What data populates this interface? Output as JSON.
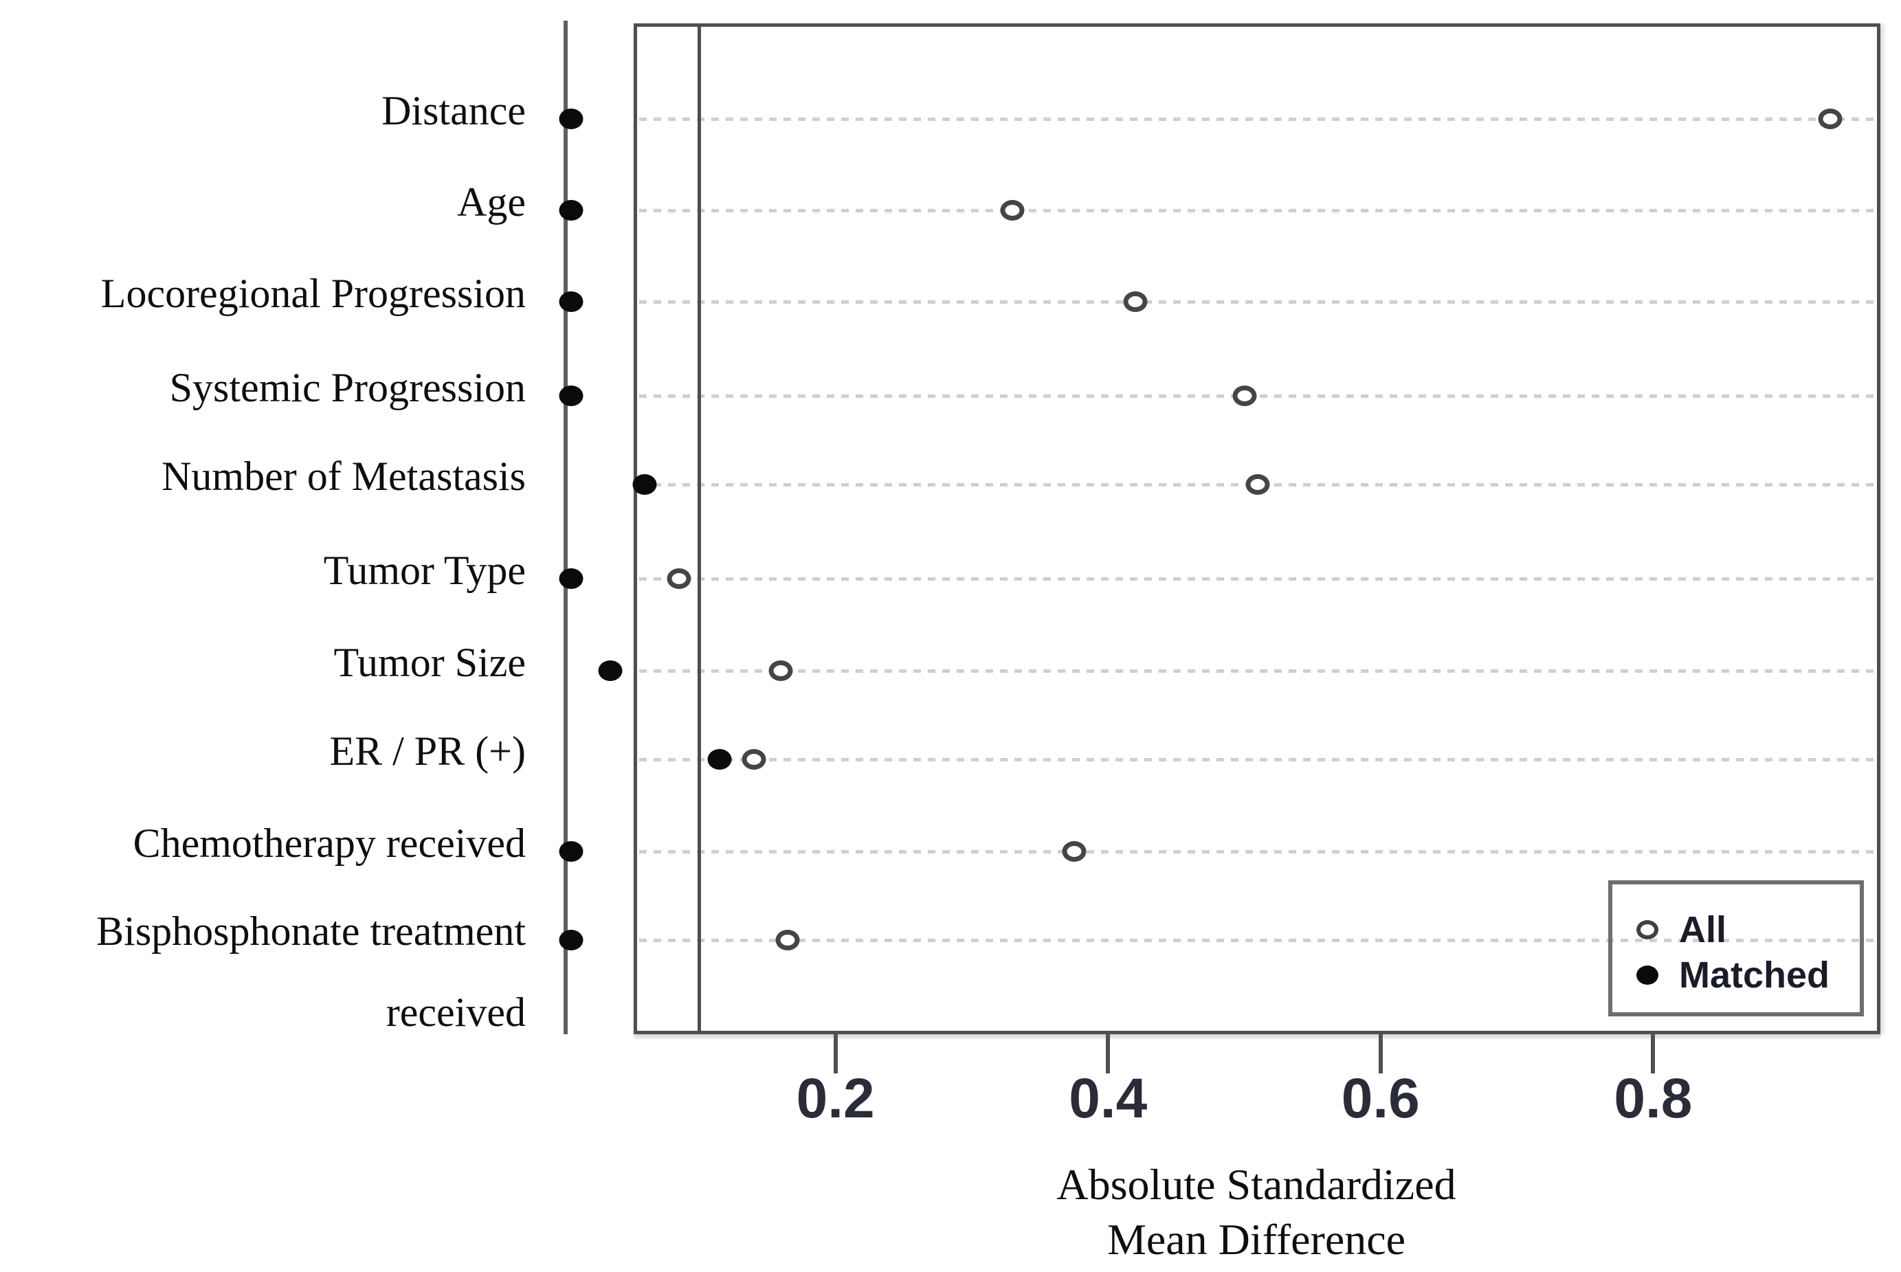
{
  "figure": {
    "background": "#ffffff"
  },
  "chart_data": {
    "type": "scatter",
    "title": "",
    "xlabel_lines": [
      "Absolute Standardized",
      "Mean Difference"
    ],
    "ylabel": "",
    "x_ticks": [
      0.2,
      0.4,
      0.6,
      0.8
    ],
    "x_tick_labels": [
      "0.2",
      "0.4",
      "0.6",
      "0.8"
    ],
    "xlim": [
      0.052,
      0.967
    ],
    "reference_line_x": 0.1,
    "grid": "dotted-horizontal",
    "categories": [
      "Distance",
      "Age",
      "Locoregional Progression",
      "Systemic Progression",
      "Number of Metastasis",
      "Tumor Type",
      "Tumor Size",
      "ER / PR (+)",
      "Chemotherapy received",
      "Bisphosphonate treatment received"
    ],
    "category_line_breaks": {
      "Bisphosphonate treatment received": [
        "Bisphosphonate treatment",
        "received"
      ]
    },
    "series": [
      {
        "name": "All",
        "marker": "open-circle",
        "values": [
          0.93,
          0.33,
          0.42,
          0.5,
          0.51,
          0.085,
          0.16,
          0.14,
          0.375,
          0.165
        ]
      },
      {
        "name": "Matched",
        "marker": "filled-circle",
        "values": [
          0.006,
          0.006,
          0.006,
          0.006,
          0.06,
          0.006,
          0.035,
          0.115,
          0.006,
          0.006
        ]
      }
    ],
    "legend": {
      "position": "bottom-right",
      "entries": [
        {
          "label": "All",
          "marker": "open-circle"
        },
        {
          "label": "Matched",
          "marker": "filled-circle"
        }
      ]
    },
    "colors": {
      "axis": "#4f4f4f",
      "y_axis_line": "#5e5e5e",
      "reference_line": "#4f4f4f",
      "gridline": "#cfcfcf",
      "open_marker_stroke": "#454545",
      "filled_marker": "#0b0b0b",
      "label_text": "#0e0e0e",
      "tick_text": "#2a2c38",
      "legend_border": "#6e6e6e",
      "legend_text": "#1a1d28",
      "background": "#ffffff"
    }
  }
}
